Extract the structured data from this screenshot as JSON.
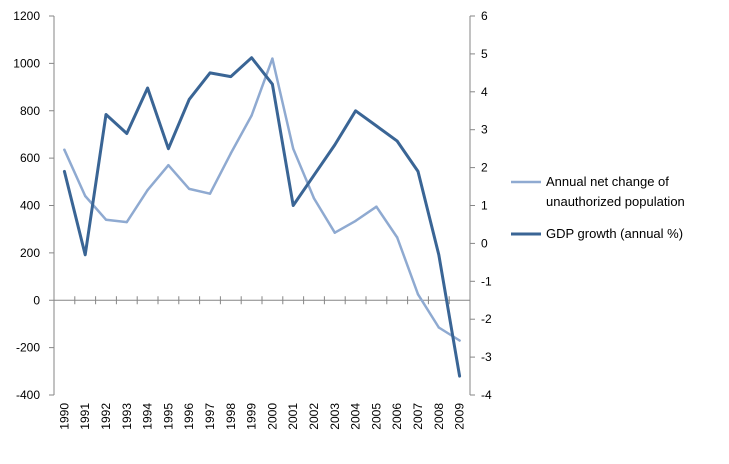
{
  "chart_data": {
    "type": "line",
    "title": "",
    "x": [
      "1990",
      "1991",
      "1992",
      "1993",
      "1994",
      "1995",
      "1996",
      "1997",
      "1998",
      "1999",
      "2000",
      "2001",
      "2002",
      "2003",
      "2004",
      "2005",
      "2006",
      "2007",
      "2008",
      "2009"
    ],
    "y_left": {
      "min": -400,
      "max": 1200,
      "ticks": [
        -400,
        -200,
        0,
        200,
        400,
        600,
        800,
        1000,
        1200
      ]
    },
    "y_right": {
      "min": -4,
      "max": 6,
      "ticks": [
        -4,
        -3,
        -2,
        -1,
        0,
        1,
        2,
        3,
        4,
        5,
        6
      ]
    },
    "grid": false,
    "legend_position": "right",
    "series": [
      {
        "name": "Annual net change of unauthorized population",
        "legend_lines": [
          "Annual net change of",
          "unauthorized population"
        ],
        "axis": "left",
        "color": "#8faad1",
        "values": [
          635,
          440,
          340,
          330,
          465,
          570,
          470,
          450,
          620,
          780,
          1020,
          640,
          430,
          285,
          335,
          395,
          265,
          25,
          -115,
          -170
        ]
      },
      {
        "name": "GDP growth (annual %)",
        "legend_lines": [
          "GDP growth (annual %)"
        ],
        "axis": "right",
        "color": "#3a6595",
        "values": [
          1.9,
          -0.3,
          3.4,
          2.9,
          4.1,
          2.5,
          3.8,
          4.5,
          4.4,
          4.9,
          4.2,
          1.0,
          1.8,
          2.6,
          3.5,
          3.1,
          2.7,
          1.9,
          -0.3,
          -3.5
        ]
      }
    ]
  }
}
